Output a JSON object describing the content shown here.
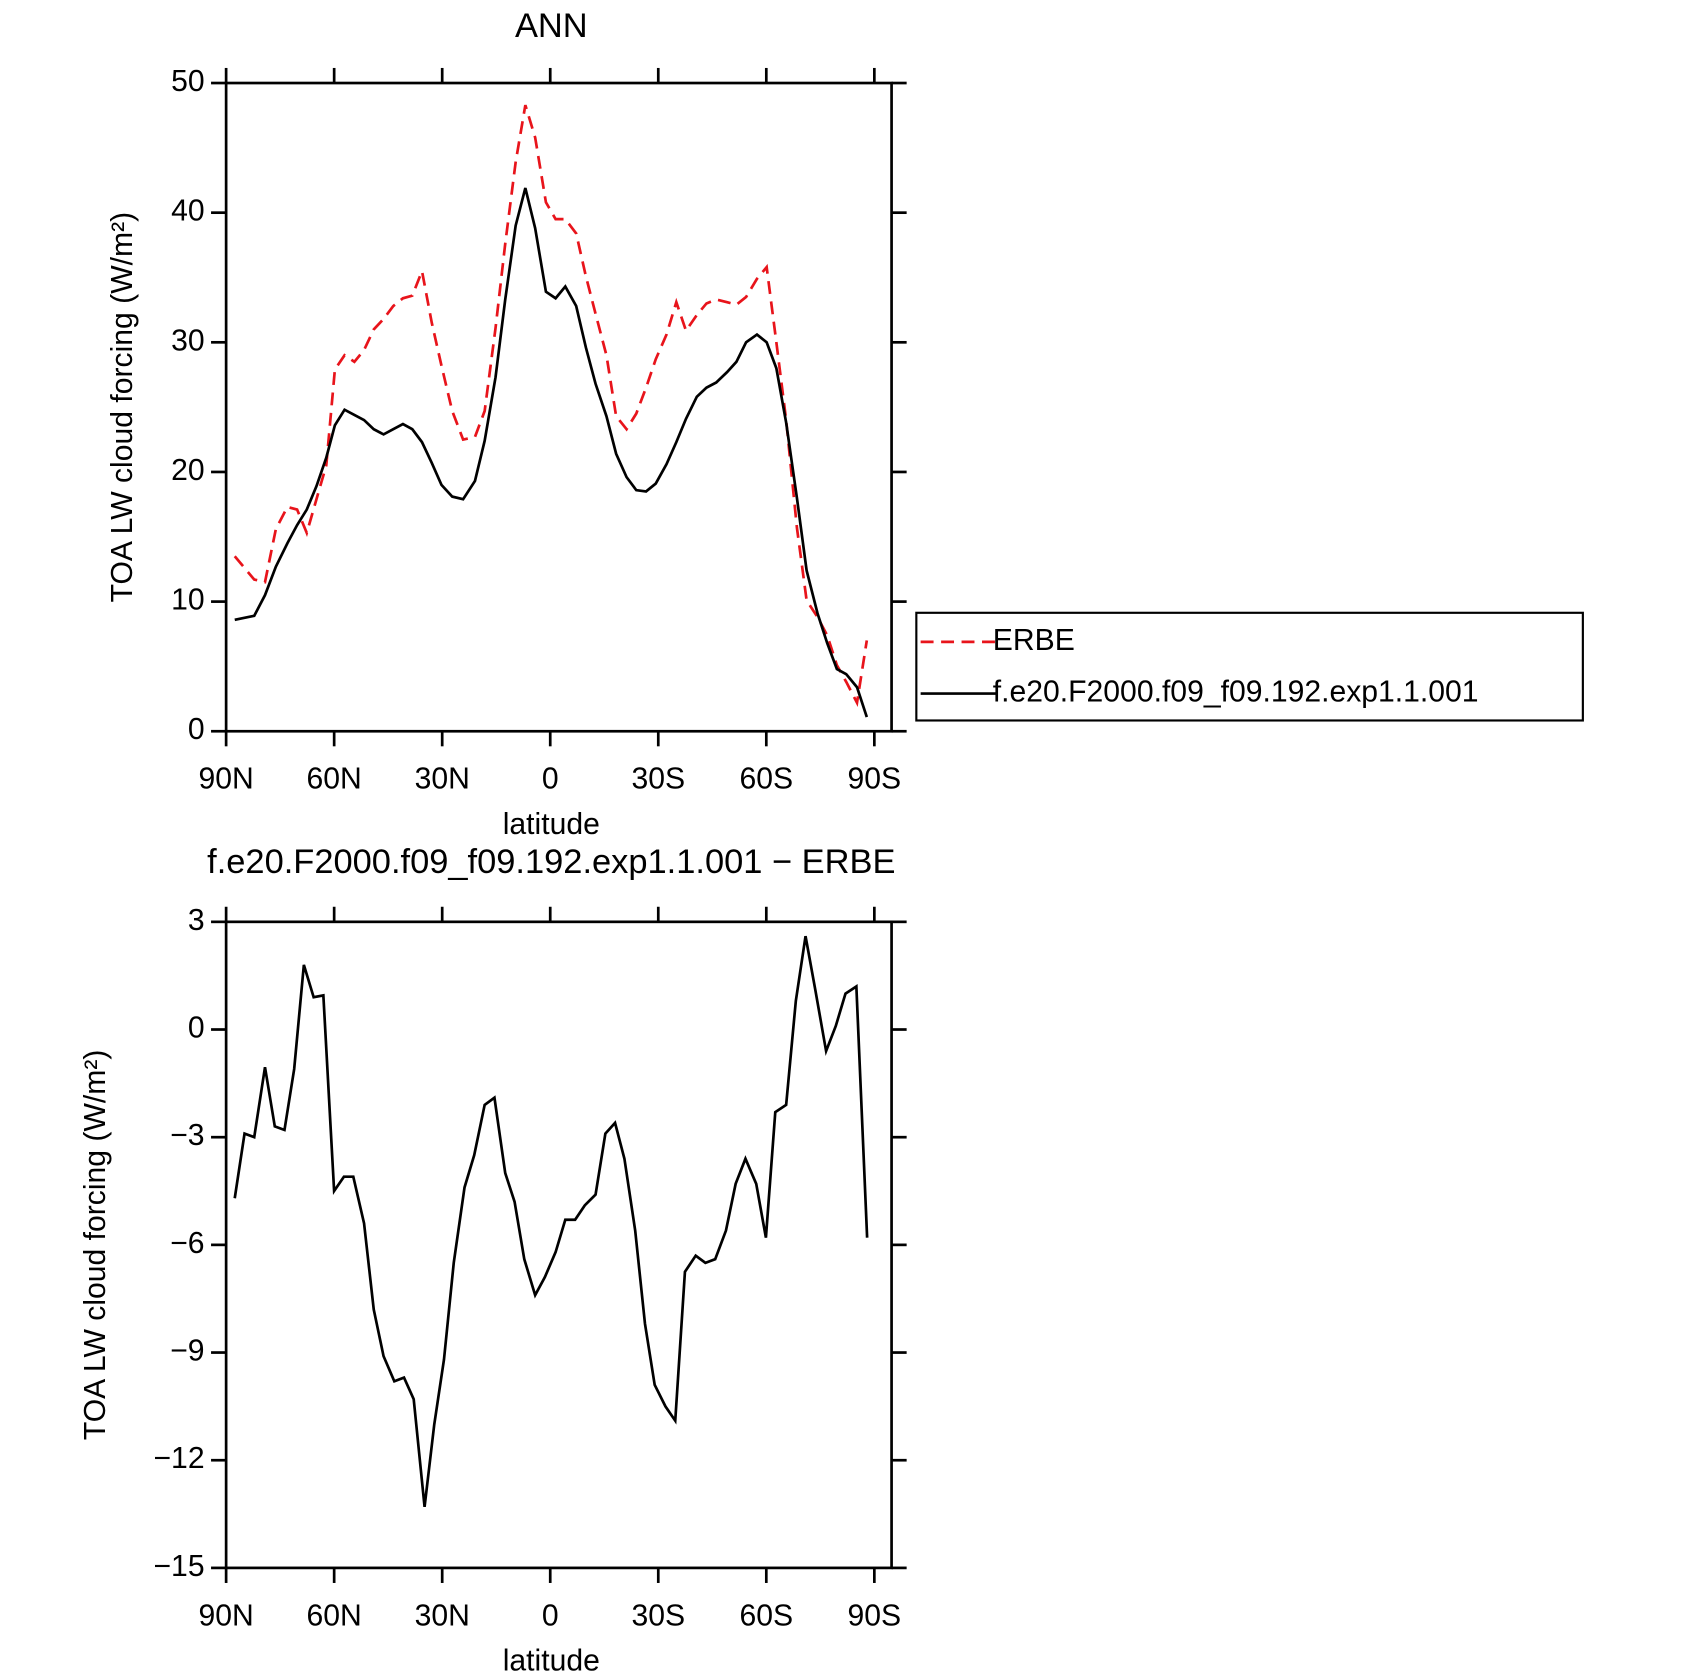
{
  "chart_data": [
    {
      "type": "line",
      "title": "ANN",
      "xlabel": "latitude",
      "ylabel": "TOA LW cloud forcing (W/m²)",
      "x": [
        87.6,
        82.2,
        79.2,
        76.2,
        73,
        70.3,
        67.6,
        64.9,
        62.2,
        59.8,
        57.1,
        54.4,
        51.7,
        49,
        46.3,
        43.6,
        40.9,
        38.3,
        35.6,
        32.9,
        30.2,
        27.2,
        24.2,
        20.9,
        18.2,
        15.2,
        12.5,
        9.6,
        6.9,
        4.2,
        1.2,
        -1.5,
        -4.2,
        -7.2,
        -9.9,
        -12.6,
        -15.6,
        -18.3,
        -21.2,
        -23.9,
        -26.6,
        -29.3,
        -32.3,
        -35,
        -37.7,
        -40.7,
        -43.4,
        -46.1,
        -49.1,
        -51.7,
        -54.4,
        -57.4,
        -60.1,
        -62.8,
        -65.5,
        -68.5,
        -71.2,
        -74.2,
        -76.9,
        -79.6,
        -82.2,
        -85.2,
        -87.9
      ],
      "series": [
        {
          "name": "ERBE",
          "color": "#e8141b",
          "linestyle": "dashed",
          "values": [
            13.5,
            11.7,
            11.5,
            15.6,
            17.3,
            17.1,
            15.3,
            17.9,
            20.5,
            27.9,
            29.0,
            28.5,
            29.4,
            31.0,
            31.8,
            32.8,
            33.4,
            33.6,
            35.5,
            31.5,
            28.2,
            24.7,
            22.5,
            22.7,
            24.7,
            31.1,
            37.6,
            43.9,
            48.3,
            45.8,
            40.8,
            39.5,
            39.5,
            38.4,
            35.1,
            32.2,
            29.0,
            24.3,
            23.3,
            24.5,
            26.5,
            28.7,
            30.6,
            33.1,
            30.9,
            32.1,
            33.0,
            33.3,
            33.1,
            32.9,
            33.5,
            34.9,
            35.8,
            30.0,
            24.0,
            15.7,
            10.1,
            8.8,
            7.4,
            5.1,
            3.8,
            2.2,
            7.0
          ]
        },
        {
          "name": "f.e20.F2000.f09_f09.192.exp1.1.001",
          "color": "#000000",
          "linestyle": "solid",
          "values": [
            8.6,
            8.9,
            10.5,
            12.7,
            14.5,
            15.9,
            17.1,
            18.9,
            21.1,
            23.6,
            24.8,
            24.4,
            24.0,
            23.3,
            22.9,
            23.3,
            23.7,
            23.3,
            22.3,
            20.7,
            19.0,
            18.1,
            17.9,
            19.3,
            22.4,
            27.3,
            33.3,
            39.0,
            41.9,
            38.8,
            33.9,
            33.4,
            34.3,
            32.8,
            29.6,
            26.8,
            24.3,
            21.4,
            19.6,
            18.6,
            18.5,
            19.1,
            20.6,
            22.3,
            24.1,
            25.8,
            26.5,
            26.9,
            27.7,
            28.5,
            30.0,
            30.6,
            30.0,
            28.0,
            23.8,
            18.0,
            12.4,
            9.1,
            6.8,
            4.8,
            4.4,
            3.4,
            1.1
          ]
        }
      ],
      "xlim": [
        90,
        -90
      ],
      "xticks": [
        {
          "value": 90,
          "label": "90N"
        },
        {
          "value": 60,
          "label": "60N"
        },
        {
          "value": 30,
          "label": "30N"
        },
        0,
        {
          "value": -30,
          "label": "30S"
        },
        {
          "value": -60,
          "label": "60S"
        },
        {
          "value": -90,
          "label": "90S"
        }
      ],
      "ylim": [
        0,
        50
      ],
      "yticks": [
        0,
        10,
        20,
        30,
        40,
        50
      ],
      "legend": "right"
    },
    {
      "type": "line",
      "title": "f.e20.F2000.f09_f09.192.exp1.1.001 − ERBE",
      "xlabel": "latitude",
      "ylabel": "TOA LW cloud forcing (W/m²)",
      "x": [
        87.6,
        84.9,
        82.2,
        79.2,
        76.5,
        73.8,
        71.1,
        68.4,
        65.7,
        63,
        60,
        57.3,
        54.7,
        51.7,
        49,
        46.3,
        43.3,
        40.6,
        37.9,
        34.9,
        32.2,
        29.5,
        26.8,
        23.8,
        21.1,
        18.2,
        15.5,
        12.5,
        9.9,
        7.2,
        4.2,
        1.5,
        -1.5,
        -4.2,
        -6.9,
        -9.6,
        -12.6,
        -15.3,
        -18,
        -20.6,
        -23.6,
        -26.3,
        -29,
        -32,
        -34.7,
        -37.4,
        -40.4,
        -43.1,
        -45.8,
        -48.8,
        -51.5,
        -54.2,
        -57.2,
        -59.9,
        -62.5,
        -65.5,
        -68.2,
        -70.9,
        -73.6,
        -76.6,
        -79.3,
        -82,
        -85,
        -88
      ],
      "color": "#000000",
      "values": [
        -4.7,
        -2.9,
        -3.0,
        -1.05,
        -2.7,
        -2.8,
        -1.1,
        1.8,
        0.9,
        0.95,
        -4.5,
        -4.1,
        -4.1,
        -5.4,
        -7.8,
        -9.1,
        -9.8,
        -9.7,
        -10.3,
        -13.3,
        -11.0,
        -9.2,
        -6.5,
        -4.4,
        -3.5,
        -2.1,
        -1.9,
        -4.0,
        -4.8,
        -6.4,
        -7.4,
        -6.9,
        -6.2,
        -5.3,
        -5.3,
        -4.9,
        -4.6,
        -2.9,
        -2.6,
        -3.6,
        -5.6,
        -8.2,
        -9.9,
        -10.5,
        -10.9,
        -6.75,
        -6.3,
        -6.5,
        -6.4,
        -5.6,
        -4.3,
        -3.6,
        -4.3,
        -5.8,
        -2.3,
        -2.1,
        0.8,
        2.6,
        1.1,
        -0.6,
        0.1,
        1.0,
        1.2,
        -5.8
      ],
      "xlim": [
        90,
        -90
      ],
      "xticks": [
        {
          "value": 90,
          "label": "90N"
        },
        {
          "value": 60,
          "label": "60N"
        },
        {
          "value": 30,
          "label": "30N"
        },
        0,
        {
          "value": -30,
          "label": "30S"
        },
        {
          "value": -60,
          "label": "60S"
        },
        {
          "value": -90,
          "label": "90S"
        }
      ],
      "ylim": [
        -15,
        3
      ],
      "yticks": [
        {
          "value": -15,
          "label": "−15"
        },
        {
          "value": -12,
          "label": "−12"
        },
        {
          "value": -9,
          "label": "−9"
        },
        {
          "value": -6,
          "label": "−6"
        },
        {
          "value": -3,
          "label": "−3"
        },
        0,
        3
      ]
    }
  ]
}
